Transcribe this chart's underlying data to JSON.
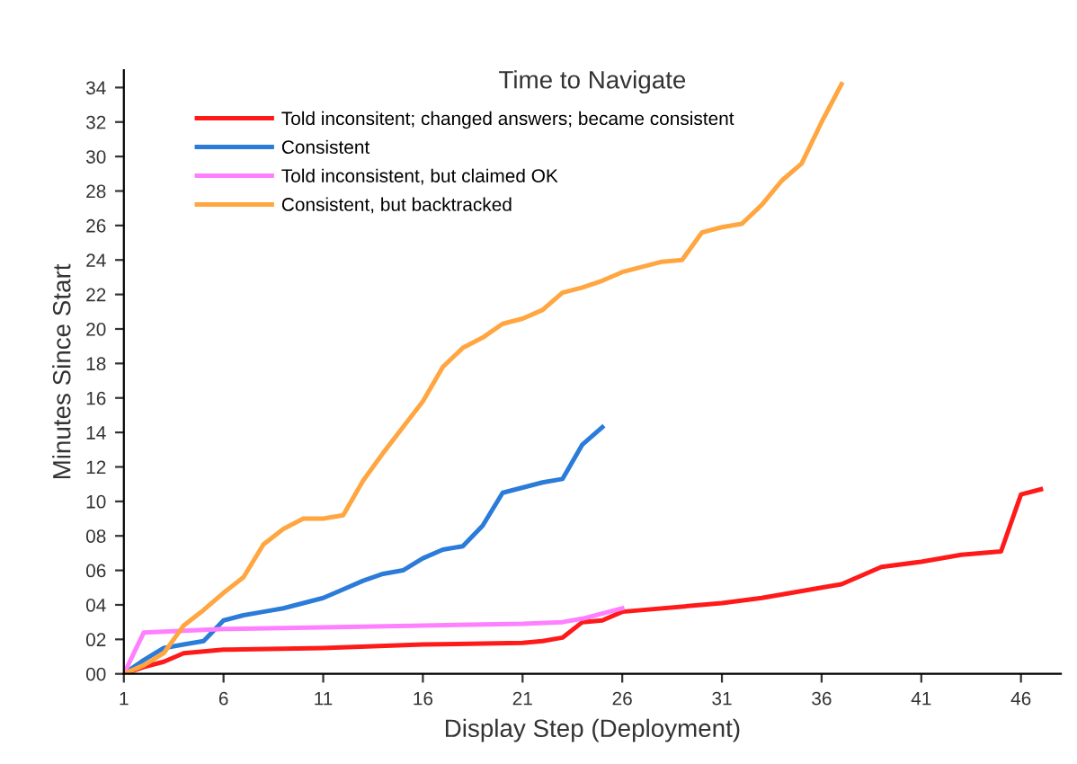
{
  "chart_data": {
    "type": "line",
    "title": "Time to Navigate",
    "xlabel": "Display Step (Deployment)",
    "ylabel": "Minutes Since Start",
    "xlim": [
      1,
      48
    ],
    "xticks": [
      1,
      6,
      11,
      16,
      21,
      26,
      31,
      36,
      41,
      46
    ],
    "ylim": [
      0,
      35
    ],
    "yticks": [
      {
        "value": 0,
        "label": "00"
      },
      {
        "value": 2,
        "label": "02"
      },
      {
        "value": 4,
        "label": "04"
      },
      {
        "value": 6,
        "label": "06"
      },
      {
        "value": 8,
        "label": "08"
      },
      10,
      12,
      14,
      16,
      18,
      20,
      22,
      24,
      26,
      28,
      30,
      32,
      34
    ],
    "grid": false,
    "legend": "top left",
    "marker": "none",
    "line_style": "solid",
    "series": [
      {
        "name": "Told inconsitent; changed answers; became consistent",
        "color": "#ff1a1a",
        "x": [
          1,
          2,
          3,
          4,
          5,
          6,
          11,
          16,
          21,
          22,
          23,
          24,
          25,
          26,
          31,
          33,
          36,
          37,
          39,
          41,
          43,
          45,
          46,
          47
        ],
        "values": [
          0,
          0.4,
          0.7,
          1.2,
          1.3,
          1.4,
          1.5,
          1.7,
          1.8,
          1.9,
          2.1,
          3.0,
          3.1,
          3.6,
          4.1,
          4.4,
          5.0,
          5.2,
          6.2,
          6.5,
          6.9,
          7.1,
          10.4,
          10.7
        ]
      },
      {
        "name": "Consistent",
        "color": "#2b7bd9",
        "x": [
          1,
          2,
          3,
          4,
          5,
          6,
          7,
          8,
          9,
          10,
          11,
          12,
          13,
          14,
          15,
          16,
          17,
          18,
          19,
          20,
          21,
          22,
          23,
          24,
          25
        ],
        "values": [
          0,
          0.8,
          1.5,
          1.7,
          1.9,
          3.1,
          3.4,
          3.6,
          3.8,
          4.1,
          4.4,
          4.9,
          5.4,
          5.8,
          6.0,
          6.7,
          7.2,
          7.4,
          8.6,
          10.5,
          10.8,
          11.1,
          11.3,
          13.3,
          14.3
        ]
      },
      {
        "name": "Told inconsistent, but claimed OK",
        "color": "#ff80ff",
        "x": [
          1,
          2,
          6,
          11,
          16,
          21,
          23,
          24,
          26
        ],
        "values": [
          0,
          2.4,
          2.6,
          2.7,
          2.8,
          2.9,
          3.0,
          3.2,
          3.8
        ]
      },
      {
        "name": "Consistent, but backtracked",
        "color": "#ffa640",
        "x": [
          1,
          2,
          3,
          4,
          5,
          6,
          7,
          8,
          9,
          10,
          11,
          12,
          13,
          14,
          15,
          16,
          17,
          18,
          19,
          20,
          21,
          22,
          23,
          24,
          25,
          26,
          27,
          28,
          29,
          30,
          31,
          32,
          33,
          34,
          35,
          36,
          37
        ],
        "values": [
          0,
          0.5,
          1.2,
          2.8,
          3.7,
          4.7,
          5.6,
          7.5,
          8.4,
          9.0,
          9.0,
          9.2,
          11.2,
          12.8,
          14.3,
          15.8,
          17.8,
          18.9,
          19.5,
          20.3,
          20.6,
          21.1,
          22.1,
          22.4,
          22.8,
          23.3,
          23.6,
          23.9,
          24.0,
          25.6,
          25.9,
          26.1,
          27.2,
          28.6,
          29.6,
          32.0,
          34.2
        ]
      }
    ]
  }
}
